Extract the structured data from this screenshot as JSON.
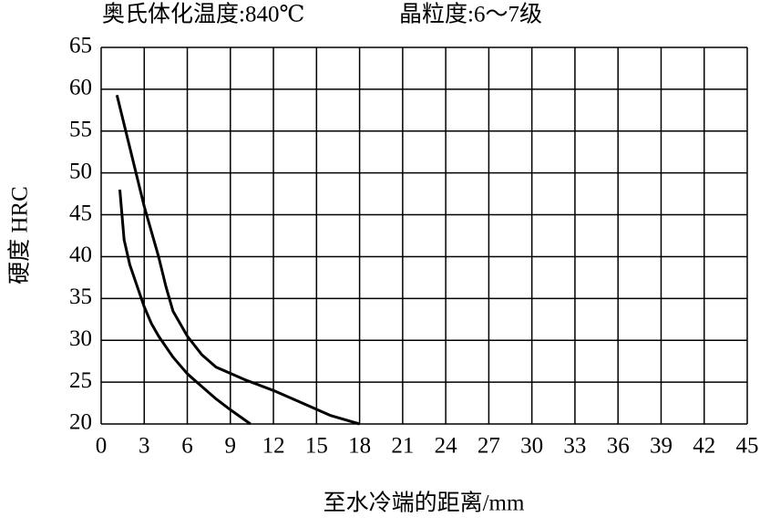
{
  "chart_data": {
    "type": "line",
    "annotations": [
      "奥氏体化温度:840℃",
      "晶粒度:6～7级"
    ],
    "xlabel": "至水冷端的距离/mm",
    "ylabel": "硬度  HRC",
    "xlim": [
      0,
      45
    ],
    "xticks": [
      0,
      3,
      6,
      9,
      12,
      15,
      18,
      21,
      24,
      27,
      30,
      33,
      36,
      39,
      42,
      45
    ],
    "ylim": [
      20,
      65
    ],
    "yticks": [
      20,
      25,
      30,
      35,
      40,
      45,
      50,
      55,
      60,
      65
    ],
    "grid": true,
    "series": [
      {
        "color": "#000000",
        "x": [
          1.1,
          2,
          3,
          4,
          4.5,
          5,
          6,
          7,
          8,
          10,
          12,
          14,
          16,
          18
        ],
        "values": [
          59.3,
          53,
          46,
          40,
          36.5,
          33.5,
          30.5,
          28.3,
          26.8,
          25.3,
          24,
          22.5,
          21,
          20
        ]
      },
      {
        "color": "#000000",
        "x": [
          1.3,
          1.6,
          2,
          2.5,
          3,
          3.5,
          4,
          5,
          6,
          7,
          8,
          9,
          10.4
        ],
        "values": [
          48,
          42,
          39,
          36.5,
          34,
          32,
          30.5,
          28,
          26,
          24.5,
          23,
          21.7,
          20
        ]
      }
    ]
  }
}
